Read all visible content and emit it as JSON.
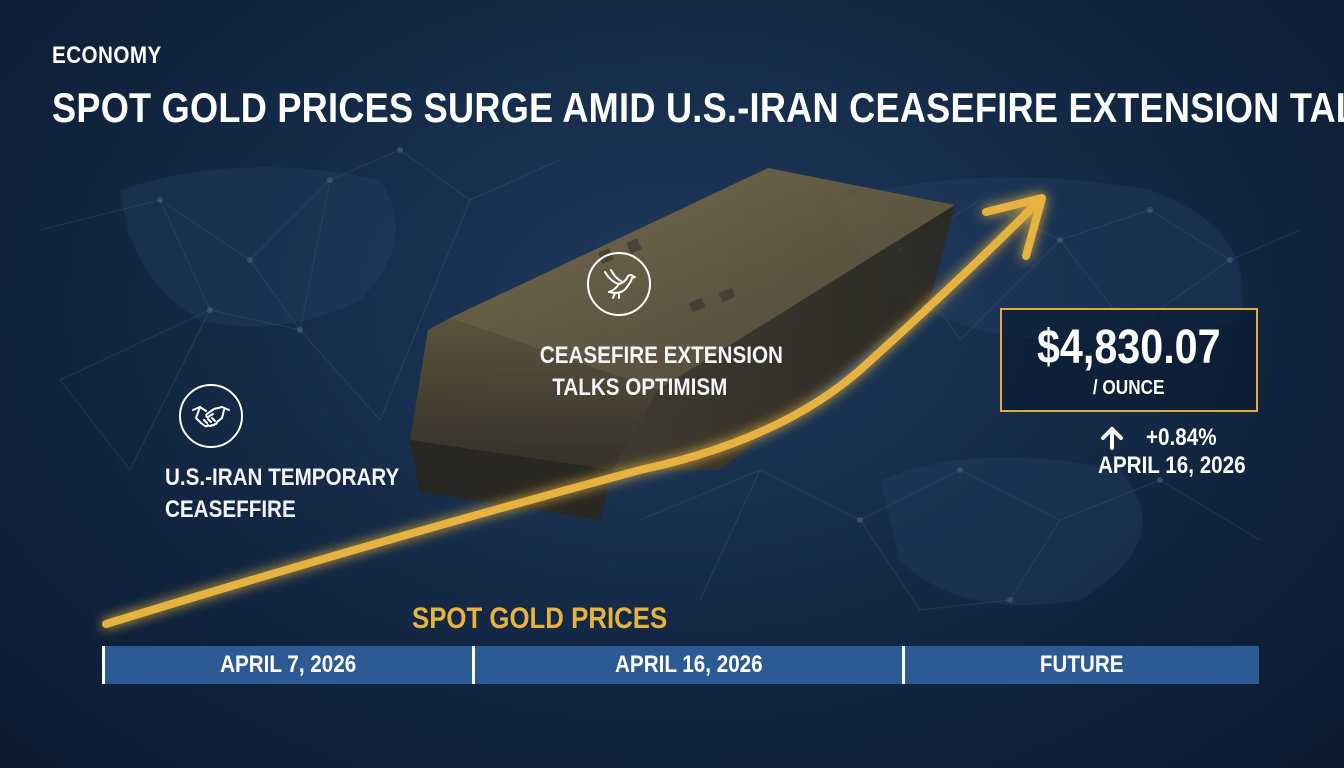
{
  "header": {
    "category": "ECONOMY",
    "headline": "SPOT GOLD PRICES SURGE AMID U.S.-IRAN CEASEFIRE EXTENSION TALKS"
  },
  "events": [
    {
      "icon": "handshake-icon",
      "label_lines": [
        "U.S.-IRAN TEMPORARY",
        "CEASEFFIRE"
      ]
    },
    {
      "icon": "dove-icon",
      "label_lines": [
        "CEASEFIRE EXTENSION",
        "TALKS OPTIMISM"
      ]
    }
  ],
  "price": {
    "value": "$4,830.07",
    "unit": "/ OUNCE",
    "change": "+0.84%",
    "change_icon": "up-arrow-icon",
    "date": "APRIL 16, 2026"
  },
  "series_label": "SPOT GOLD PRICES",
  "timeline": [
    "APRIL 7, 2026",
    "APRIL 16, 2026",
    "FUTURE"
  ],
  "colors": {
    "background": "#142a47",
    "accent_gold": "#e7b33f",
    "timeline_bar": "#2c5a94",
    "text": "#ffffff"
  }
}
